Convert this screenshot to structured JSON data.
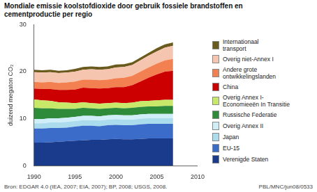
{
  "chart_data": {
    "type": "area",
    "stacked": true,
    "title": [
      "Mondiale emissie koolstofdioxide door gebruik fossiele brandstoffen en",
      "cementproductie per regio"
    ],
    "ylabel": "duizend megaton CO₂",
    "annotations": [
      "Bron: EDGAR 4.0 (IEA, 2007; EIA, 2007); BP, 2008; USGS, 2008.",
      "PBL/MNC/jun08/0533"
    ],
    "x": [
      1990,
      1991,
      1992,
      1993,
      1994,
      1995,
      1996,
      1997,
      1998,
      1999,
      2000,
      2001,
      2002,
      2003,
      2004,
      2005,
      2006,
      2007
    ],
    "series": [
      {
        "name": "Verenigde Staten",
        "color": "#1a3a8c",
        "values": [
          4.9,
          4.9,
          5.0,
          5.1,
          5.2,
          5.3,
          5.4,
          5.5,
          5.5,
          5.6,
          5.7,
          5.6,
          5.6,
          5.7,
          5.8,
          5.8,
          5.8,
          5.8
        ]
      },
      {
        "name": "EU-15",
        "color": "#3b6cc9",
        "values": [
          3.0,
          3.0,
          3.0,
          2.9,
          2.9,
          3.0,
          3.1,
          3.0,
          2.9,
          3.0,
          3.0,
          3.0,
          3.0,
          3.1,
          3.1,
          3.1,
          3.1,
          3.1
        ]
      },
      {
        "name": "Japan",
        "color": "#aadcee",
        "values": [
          1.1,
          1.1,
          1.2,
          1.2,
          1.2,
          1.2,
          1.2,
          1.2,
          1.2,
          1.2,
          1.2,
          1.2,
          1.2,
          1.2,
          1.2,
          1.2,
          1.2,
          1.2
        ]
      },
      {
        "name": "Overig Annex II",
        "color": "#d0eef8",
        "values": [
          0.9,
          0.9,
          0.9,
          0.9,
          0.9,
          0.9,
          0.9,
          0.9,
          0.9,
          0.9,
          0.9,
          0.9,
          0.9,
          0.9,
          0.9,
          0.9,
          0.9,
          0.9
        ]
      },
      {
        "name": "Russische Federatie",
        "color": "#2e8b3a",
        "values": [
          2.4,
          2.3,
          2.1,
          2.0,
          1.9,
          1.7,
          1.7,
          1.6,
          1.6,
          1.5,
          1.5,
          1.5,
          1.6,
          1.6,
          1.6,
          1.6,
          1.7,
          1.7
        ]
      },
      {
        "name": "Overig Annex I-\nEconomieeën In Transitie",
        "color": "#c8e86a",
        "values": [
          1.8,
          1.7,
          1.6,
          1.4,
          1.3,
          1.2,
          1.2,
          1.1,
          1.1,
          1.1,
          1.1,
          1.1,
          1.1,
          1.2,
          1.2,
          1.3,
          1.3,
          1.3
        ]
      },
      {
        "name": "China",
        "color": "#cc0000",
        "values": [
          2.3,
          2.4,
          2.5,
          2.6,
          2.7,
          2.9,
          3.1,
          3.2,
          3.2,
          3.2,
          3.3,
          3.4,
          3.7,
          4.2,
          4.9,
          5.5,
          6.0,
          6.2
        ]
      },
      {
        "name": "Andere grote\nontwikkelingslanden",
        "color": "#f28050",
        "values": [
          1.4,
          1.4,
          1.5,
          1.5,
          1.6,
          1.7,
          1.7,
          1.8,
          1.8,
          1.8,
          1.9,
          2.0,
          2.0,
          2.1,
          2.2,
          2.3,
          2.4,
          2.5
        ]
      },
      {
        "name": "Overig niet-Annex I",
        "color": "#f5c5b0",
        "values": [
          2.1,
          2.1,
          2.1,
          2.1,
          2.1,
          2.1,
          2.1,
          2.2,
          2.2,
          2.2,
          2.3,
          2.3,
          2.3,
          2.4,
          2.5,
          2.6,
          2.7,
          2.8
        ]
      },
      {
        "name": "Internationaal\ntransport",
        "color": "#6b5a1e",
        "values": [
          0.5,
          0.5,
          0.5,
          0.5,
          0.5,
          0.6,
          0.6,
          0.6,
          0.6,
          0.6,
          0.6,
          0.6,
          0.6,
          0.6,
          0.6,
          0.7,
          0.7,
          0.7
        ]
      }
    ],
    "xlim": [
      1990,
      2010
    ],
    "xticks": [
      1990,
      1995,
      2000,
      2005,
      2010
    ],
    "ylim": [
      0,
      30
    ],
    "yticks": [
      0,
      10,
      20,
      30
    ],
    "grid": false,
    "legend": "right"
  }
}
